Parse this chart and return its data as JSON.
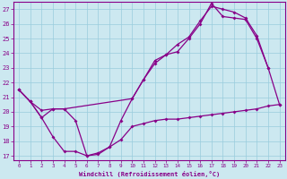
{
  "xlabel": "Windchill (Refroidissement éolien,°C)",
  "bg_color": "#cce8f0",
  "line_color": "#880088",
  "grid_color": "#99ccdd",
  "xlim": [
    -0.5,
    23.5
  ],
  "ylim": [
    16.7,
    27.5
  ],
  "yticks": [
    17,
    18,
    19,
    20,
    21,
    22,
    23,
    24,
    25,
    26,
    27
  ],
  "xticks": [
    0,
    1,
    2,
    3,
    4,
    5,
    6,
    7,
    8,
    9,
    10,
    11,
    12,
    13,
    14,
    15,
    16,
    17,
    18,
    19,
    20,
    21,
    22,
    23
  ],
  "line1_x": [
    0,
    1,
    2,
    3,
    4,
    10,
    11,
    12,
    13,
    14,
    15,
    16,
    17,
    18,
    19,
    20,
    21,
    22
  ],
  "line1_y": [
    21.5,
    20.7,
    19.6,
    20.2,
    20.2,
    20.9,
    22.2,
    23.5,
    23.9,
    24.6,
    25.1,
    26.2,
    27.2,
    27.0,
    26.8,
    26.4,
    25.2,
    23.0
  ],
  "line2_x": [
    0,
    1,
    2,
    3,
    4,
    5,
    6,
    7,
    8,
    9,
    10,
    11,
    12,
    13,
    14,
    15,
    16,
    17,
    18,
    19,
    20,
    21,
    22,
    23
  ],
  "line2_y": [
    21.5,
    20.7,
    20.1,
    20.2,
    20.2,
    19.4,
    17.0,
    17.1,
    17.6,
    19.4,
    20.9,
    22.2,
    23.3,
    23.9,
    24.1,
    25.0,
    26.0,
    27.4,
    26.5,
    26.4,
    26.3,
    25.0,
    23.0,
    20.5
  ],
  "line3_x": [
    0,
    1,
    2,
    3,
    4,
    5,
    6,
    7,
    8,
    9,
    10,
    11,
    12,
    13,
    14,
    15,
    16,
    17,
    18,
    19,
    20,
    21,
    22,
    23
  ],
  "line3_y": [
    21.5,
    20.7,
    19.6,
    18.3,
    17.3,
    17.3,
    17.0,
    17.2,
    17.6,
    18.1,
    19.0,
    19.2,
    19.4,
    19.5,
    19.5,
    19.6,
    19.7,
    19.8,
    19.9,
    20.0,
    20.1,
    20.2,
    20.4,
    20.5
  ]
}
